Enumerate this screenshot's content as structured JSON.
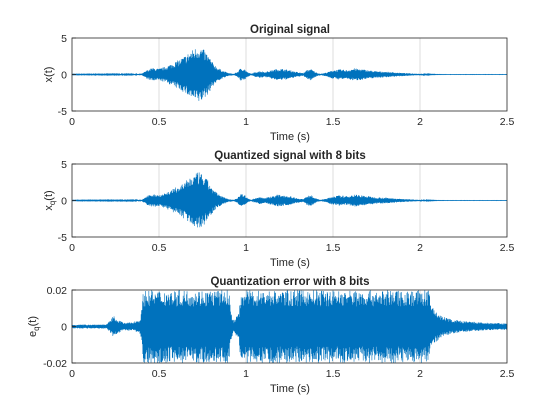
{
  "colors": {
    "signal": "#0072BD",
    "axes": "#262626",
    "grid": "#dcdcdc",
    "background": "#ffffff"
  },
  "chart_data": [
    {
      "type": "line",
      "title": "Original signal",
      "xlabel": "Time (s)",
      "ylabel": "x(t)",
      "xlim": [
        0,
        2.5
      ],
      "ylim": [
        -5,
        5
      ],
      "xticks": [
        "0",
        "0.5",
        "1",
        "1.5",
        "2",
        "2.5"
      ],
      "yticks": [
        "5",
        "0",
        "-5"
      ],
      "grid": "x-only",
      "envelope": {
        "t": [
          0,
          0.4,
          0.43,
          0.46,
          0.5,
          0.54,
          0.58,
          0.62,
          0.65,
          0.68,
          0.71,
          0.73,
          0.75,
          0.78,
          0.81,
          0.84,
          0.87,
          0.9,
          0.93,
          0.95,
          0.97,
          0.99,
          1.01,
          1.03,
          1.05,
          1.08,
          1.11,
          1.14,
          1.18,
          1.22,
          1.26,
          1.3,
          1.33,
          1.35,
          1.37,
          1.39,
          1.41,
          1.43,
          1.46,
          1.5,
          1.54,
          1.58,
          1.62,
          1.66,
          1.7,
          1.75,
          1.8,
          1.85,
          1.9,
          1.95,
          2.0,
          2.05,
          2.08,
          2.1,
          2.15,
          2.5
        ],
        "amplitude": [
          0.05,
          0.08,
          0.6,
          0.9,
          0.8,
          1.1,
          1.6,
          2.1,
          2.6,
          3.2,
          3.7,
          3.9,
          3.6,
          2.8,
          1.6,
          0.9,
          0.5,
          0.2,
          0.1,
          0.35,
          0.9,
          0.8,
          0.3,
          0.1,
          0.3,
          0.5,
          0.35,
          0.55,
          0.8,
          0.75,
          0.55,
          0.3,
          0.2,
          0.6,
          0.8,
          0.5,
          0.2,
          0.1,
          0.25,
          0.6,
          0.7,
          0.6,
          0.85,
          0.75,
          0.6,
          0.45,
          0.4,
          0.3,
          0.22,
          0.15,
          0.1,
          0.06,
          0.04,
          0.03,
          0.02,
          0.02
        ]
      }
    },
    {
      "type": "line",
      "title": "Quantized signal with 8 bits",
      "xlabel": "Time (s)",
      "ylabel": "x_q(t)",
      "ylabel_main": "x",
      "ylabel_sub": "q",
      "ylabel_tail": "(t)",
      "xlim": [
        0,
        2.5
      ],
      "ylim": [
        -5,
        5
      ],
      "xticks": [
        "0",
        "0.5",
        "1",
        "1.5",
        "2",
        "2.5"
      ],
      "yticks": [
        "5",
        "0",
        "-5"
      ],
      "grid": "x-only",
      "envelope": {
        "t": [
          0,
          0.4,
          0.43,
          0.46,
          0.5,
          0.54,
          0.58,
          0.62,
          0.65,
          0.68,
          0.71,
          0.73,
          0.75,
          0.78,
          0.81,
          0.84,
          0.87,
          0.9,
          0.93,
          0.95,
          0.97,
          0.99,
          1.01,
          1.03,
          1.05,
          1.08,
          1.11,
          1.14,
          1.18,
          1.22,
          1.26,
          1.3,
          1.33,
          1.35,
          1.37,
          1.39,
          1.41,
          1.43,
          1.46,
          1.5,
          1.54,
          1.58,
          1.62,
          1.66,
          1.7,
          1.75,
          1.8,
          1.85,
          1.9,
          1.95,
          2.0,
          2.05,
          2.08,
          2.1,
          2.15,
          2.5
        ],
        "amplitude": [
          0.05,
          0.08,
          0.6,
          0.9,
          0.8,
          1.1,
          1.6,
          2.1,
          2.6,
          3.2,
          3.7,
          3.9,
          3.6,
          2.8,
          1.6,
          0.9,
          0.5,
          0.2,
          0.1,
          0.35,
          0.9,
          0.8,
          0.3,
          0.1,
          0.3,
          0.5,
          0.35,
          0.55,
          0.8,
          0.75,
          0.55,
          0.3,
          0.2,
          0.6,
          0.8,
          0.5,
          0.2,
          0.1,
          0.25,
          0.6,
          0.7,
          0.6,
          0.85,
          0.75,
          0.6,
          0.45,
          0.4,
          0.3,
          0.22,
          0.15,
          0.1,
          0.06,
          0.04,
          0.03,
          0.02,
          0.02
        ]
      }
    },
    {
      "type": "line",
      "title": "Quantization error with 8 bits",
      "xlabel": "Time (s)",
      "ylabel": "e_q(t)",
      "ylabel_main": "e",
      "ylabel_sub": "q",
      "ylabel_tail": "(t)",
      "xlim": [
        0,
        2.5
      ],
      "ylim": [
        -0.02,
        0.02
      ],
      "xticks": [
        "0",
        "0.5",
        "1",
        "1.5",
        "2",
        "2.5"
      ],
      "yticks": [
        "0.02",
        "0",
        "-0.02"
      ],
      "grid": "x-only",
      "envelope": {
        "t": [
          0,
          0.2,
          0.22,
          0.24,
          0.26,
          0.28,
          0.3,
          0.35,
          0.39,
          0.4,
          0.41,
          0.905,
          0.91,
          0.93,
          0.95,
          0.96,
          0.97,
          2.05,
          2.06,
          2.08,
          2.12,
          2.18,
          2.25,
          2.32,
          2.4,
          2.5
        ],
        "amplitude": [
          0.001,
          0.0012,
          0.0035,
          0.006,
          0.004,
          0.003,
          0.002,
          0.0025,
          0.004,
          0.009,
          0.02,
          0.02,
          0.009,
          0.003,
          0.006,
          0.008,
          0.02,
          0.02,
          0.014,
          0.01,
          0.006,
          0.004,
          0.003,
          0.0025,
          0.002,
          0.0018
        ]
      }
    }
  ]
}
